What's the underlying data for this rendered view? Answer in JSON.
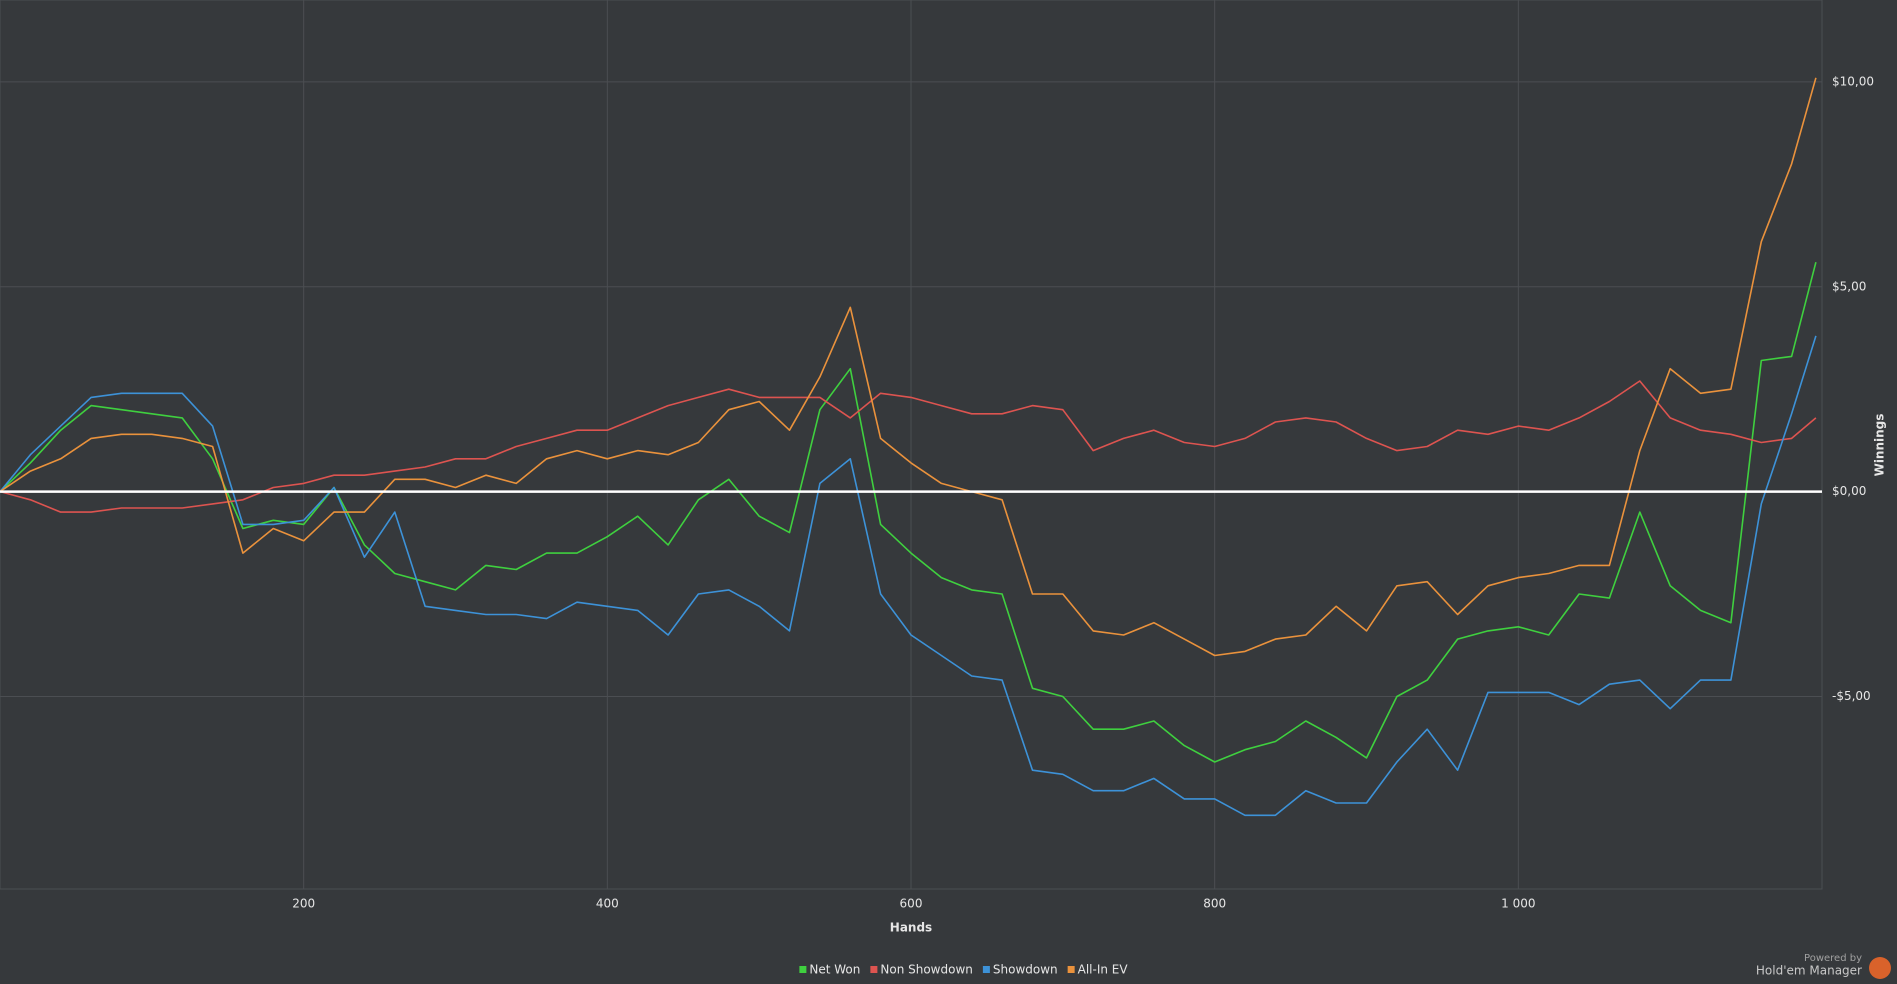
{
  "chart_data": {
    "type": "line",
    "x_label": "Hands",
    "y_label": "Winnings",
    "x": [
      0,
      20,
      40,
      60,
      80,
      100,
      120,
      140,
      160,
      180,
      200,
      220,
      240,
      260,
      280,
      300,
      320,
      340,
      360,
      380,
      400,
      420,
      440,
      460,
      480,
      500,
      520,
      540,
      560,
      580,
      600,
      620,
      640,
      660,
      680,
      700,
      720,
      740,
      760,
      780,
      800,
      820,
      840,
      860,
      880,
      900,
      920,
      940,
      960,
      980,
      1000,
      1020,
      1040,
      1060,
      1080,
      1100,
      1120,
      1140,
      1160,
      1180,
      1196
    ],
    "series": [
      {
        "name": "Net Won",
        "color": "#3fd03f",
        "values": [
          0,
          0.7,
          1.5,
          2.1,
          2.0,
          1.9,
          1.8,
          0.8,
          -0.9,
          -0.7,
          -0.8,
          0.1,
          -1.3,
          -2.0,
          -2.2,
          -2.4,
          -1.8,
          -1.9,
          -1.5,
          -1.5,
          -1.1,
          -0.6,
          -1.3,
          -0.2,
          0.3,
          -0.6,
          -1.0,
          2.0,
          3.0,
          -0.8,
          -1.5,
          -2.1,
          -2.4,
          -2.5,
          -4.8,
          -5.0,
          -5.8,
          -5.8,
          -5.6,
          -6.2,
          -6.6,
          -6.3,
          -6.1,
          -5.6,
          -6.0,
          -6.5,
          -5.0,
          -4.6,
          -3.6,
          -3.4,
          -3.3,
          -3.5,
          -2.5,
          -2.6,
          -0.5,
          -2.3,
          -2.9,
          -3.2,
          3.2,
          3.3,
          5.6
        ]
      },
      {
        "name": "Non Showdown",
        "color": "#dd5450",
        "values": [
          0,
          -0.2,
          -0.5,
          -0.5,
          -0.4,
          -0.4,
          -0.4,
          -0.3,
          -0.2,
          0.1,
          0.2,
          0.4,
          0.4,
          0.5,
          0.6,
          0.8,
          0.8,
          1.1,
          1.3,
          1.5,
          1.5,
          1.8,
          2.1,
          2.3,
          2.5,
          2.3,
          2.3,
          2.3,
          1.8,
          2.4,
          2.3,
          2.1,
          1.9,
          1.9,
          2.1,
          2.0,
          1.0,
          1.3,
          1.5,
          1.2,
          1.1,
          1.3,
          1.7,
          1.8,
          1.7,
          1.3,
          1.0,
          1.1,
          1.5,
          1.4,
          1.6,
          1.5,
          1.8,
          2.2,
          2.7,
          1.8,
          1.5,
          1.4,
          1.2,
          1.3,
          1.8
        ]
      },
      {
        "name": "Showdown",
        "color": "#3d92d8",
        "values": [
          0,
          0.9,
          1.6,
          2.3,
          2.4,
          2.4,
          2.4,
          1.6,
          -0.8,
          -0.8,
          -0.7,
          0.1,
          -1.6,
          -0.5,
          -2.8,
          -2.9,
          -3.0,
          -3.0,
          -3.1,
          -2.7,
          -2.8,
          -2.9,
          -3.5,
          -2.5,
          -2.4,
          -2.8,
          -3.4,
          0.2,
          0.8,
          -2.5,
          -3.5,
          -4.0,
          -4.5,
          -4.6,
          -6.8,
          -6.9,
          -7.3,
          -7.3,
          -7.0,
          -7.5,
          -7.5,
          -7.9,
          -7.9,
          -7.3,
          -7.6,
          -7.6,
          -6.6,
          -5.8,
          -6.8,
          -4.9,
          -4.9,
          -4.9,
          -5.2,
          -4.7,
          -4.6,
          -5.3,
          -4.6,
          -4.6,
          -0.3,
          1.9,
          3.8
        ]
      },
      {
        "name": "All-In EV",
        "color": "#ea923c",
        "values": [
          0,
          0.5,
          0.8,
          1.3,
          1.4,
          1.4,
          1.3,
          1.1,
          -1.5,
          -0.9,
          -1.2,
          -0.5,
          -0.5,
          0.3,
          0.3,
          0.1,
          0.4,
          0.2,
          0.8,
          1.0,
          0.8,
          1.0,
          0.9,
          1.2,
          2.0,
          2.2,
          1.5,
          2.8,
          4.5,
          1.3,
          0.7,
          0.2,
          0.0,
          -0.2,
          -2.5,
          -2.5,
          -3.4,
          -3.5,
          -3.2,
          -3.6,
          -4.0,
          -3.9,
          -3.6,
          -3.5,
          -2.8,
          -3.4,
          -2.3,
          -2.2,
          -3.0,
          -2.3,
          -2.1,
          -2.0,
          -1.8,
          -1.8,
          1.0,
          3.0,
          2.4,
          2.5,
          6.1,
          8.0,
          10.1
        ]
      }
    ],
    "xlim": [
      0,
      1200
    ],
    "xticks": [
      200,
      400,
      600,
      800,
      {
        "value": 1000,
        "label": "1 000"
      }
    ],
    "ylim": [
      -9.7,
      12
    ],
    "yticks": [
      {
        "value": -5,
        "label": "-$5,00"
      },
      {
        "value": 0,
        "label": "$0,00"
      },
      {
        "value": 5,
        "label": "$5,00"
      },
      {
        "value": 10,
        "label": "$10,00"
      }
    ],
    "grid": true,
    "legend": "bottom"
  },
  "branding": {
    "powered_by": "Powered by",
    "product": "Hold'em Manager"
  }
}
